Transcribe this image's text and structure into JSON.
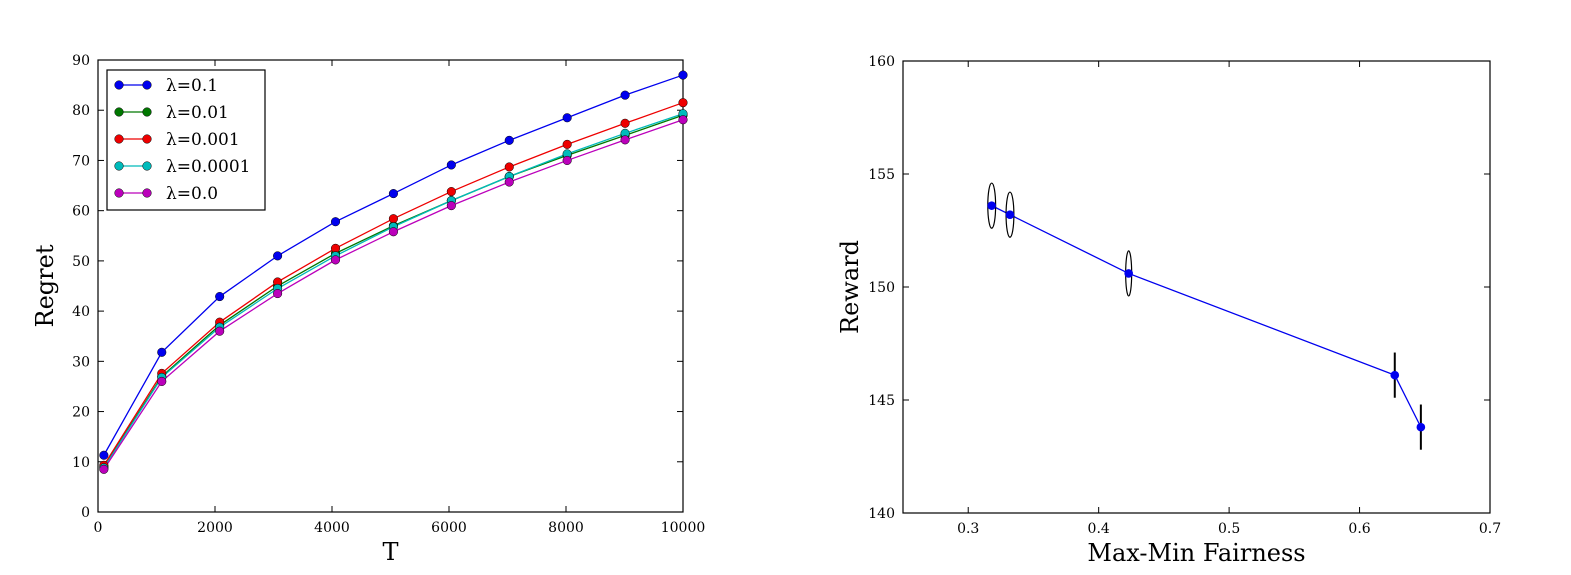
{
  "chart_data": [
    {
      "type": "line",
      "xlabel": "T",
      "ylabel": "Regret",
      "xlim": [
        0,
        10000
      ],
      "ylim": [
        0,
        90
      ],
      "xticks": [
        "0",
        "2000",
        "4000",
        "6000",
        "8000",
        "10000"
      ],
      "yticks": [
        "0",
        "10",
        "20",
        "30",
        "40",
        "50",
        "60",
        "70",
        "80",
        "90"
      ],
      "grid": false,
      "legend_position": "top-left",
      "x": [
        100,
        1090,
        2080,
        3070,
        4060,
        5050,
        6040,
        7030,
        8020,
        9010,
        10000
      ],
      "series": [
        {
          "name": "λ=0.1",
          "color": "#0000ee",
          "values": [
            11.3,
            31.8,
            42.9,
            51.0,
            57.8,
            63.4,
            69.1,
            74.0,
            78.5,
            83.0,
            87.0
          ]
        },
        {
          "name": "λ=0.01",
          "color": "#007700",
          "values": [
            9.0,
            27.0,
            37.2,
            45.0,
            51.5,
            57.0,
            62.0,
            66.8,
            71.0,
            75.0,
            79.0
          ]
        },
        {
          "name": "λ=0.001",
          "color": "#ee0000",
          "values": [
            9.3,
            27.6,
            37.8,
            45.8,
            52.5,
            58.4,
            63.8,
            68.7,
            73.2,
            77.4,
            81.5
          ]
        },
        {
          "name": "λ=0.0001",
          "color": "#00bbbb",
          "values": [
            8.8,
            26.8,
            36.8,
            44.5,
            51.0,
            56.8,
            62.0,
            66.8,
            71.3,
            75.4,
            79.3
          ]
        },
        {
          "name": "λ=0.0",
          "color": "#bb00bb",
          "values": [
            8.5,
            26.0,
            36.0,
            43.5,
            50.2,
            55.8,
            61.0,
            65.7,
            70.0,
            74.1,
            78.1
          ]
        }
      ]
    },
    {
      "type": "scatter",
      "xlabel": "Max-Min Fairness",
      "ylabel": "Reward",
      "xlim": [
        0.25,
        0.7
      ],
      "ylim": [
        140,
        160
      ],
      "xticks": [
        "0.3",
        "0.4",
        "0.5",
        "0.6",
        "0.7"
      ],
      "yticks": [
        "140",
        "145",
        "150",
        "155",
        "160"
      ],
      "grid": false,
      "connected": true,
      "color": "#0000ee",
      "points": [
        {
          "x": 0.318,
          "y": 153.6,
          "xerr": 0.003,
          "yerr": 1.0
        },
        {
          "x": 0.332,
          "y": 153.2,
          "xerr": 0.003,
          "yerr": 1.0
        },
        {
          "x": 0.423,
          "y": 150.6,
          "xerr": 0.0023,
          "yerr": 1.0
        },
        {
          "x": 0.627,
          "y": 146.1,
          "xerr": 0,
          "yerr": 1.0
        },
        {
          "x": 0.647,
          "y": 143.8,
          "xerr": 0,
          "yerr": 1.0
        }
      ]
    }
  ]
}
